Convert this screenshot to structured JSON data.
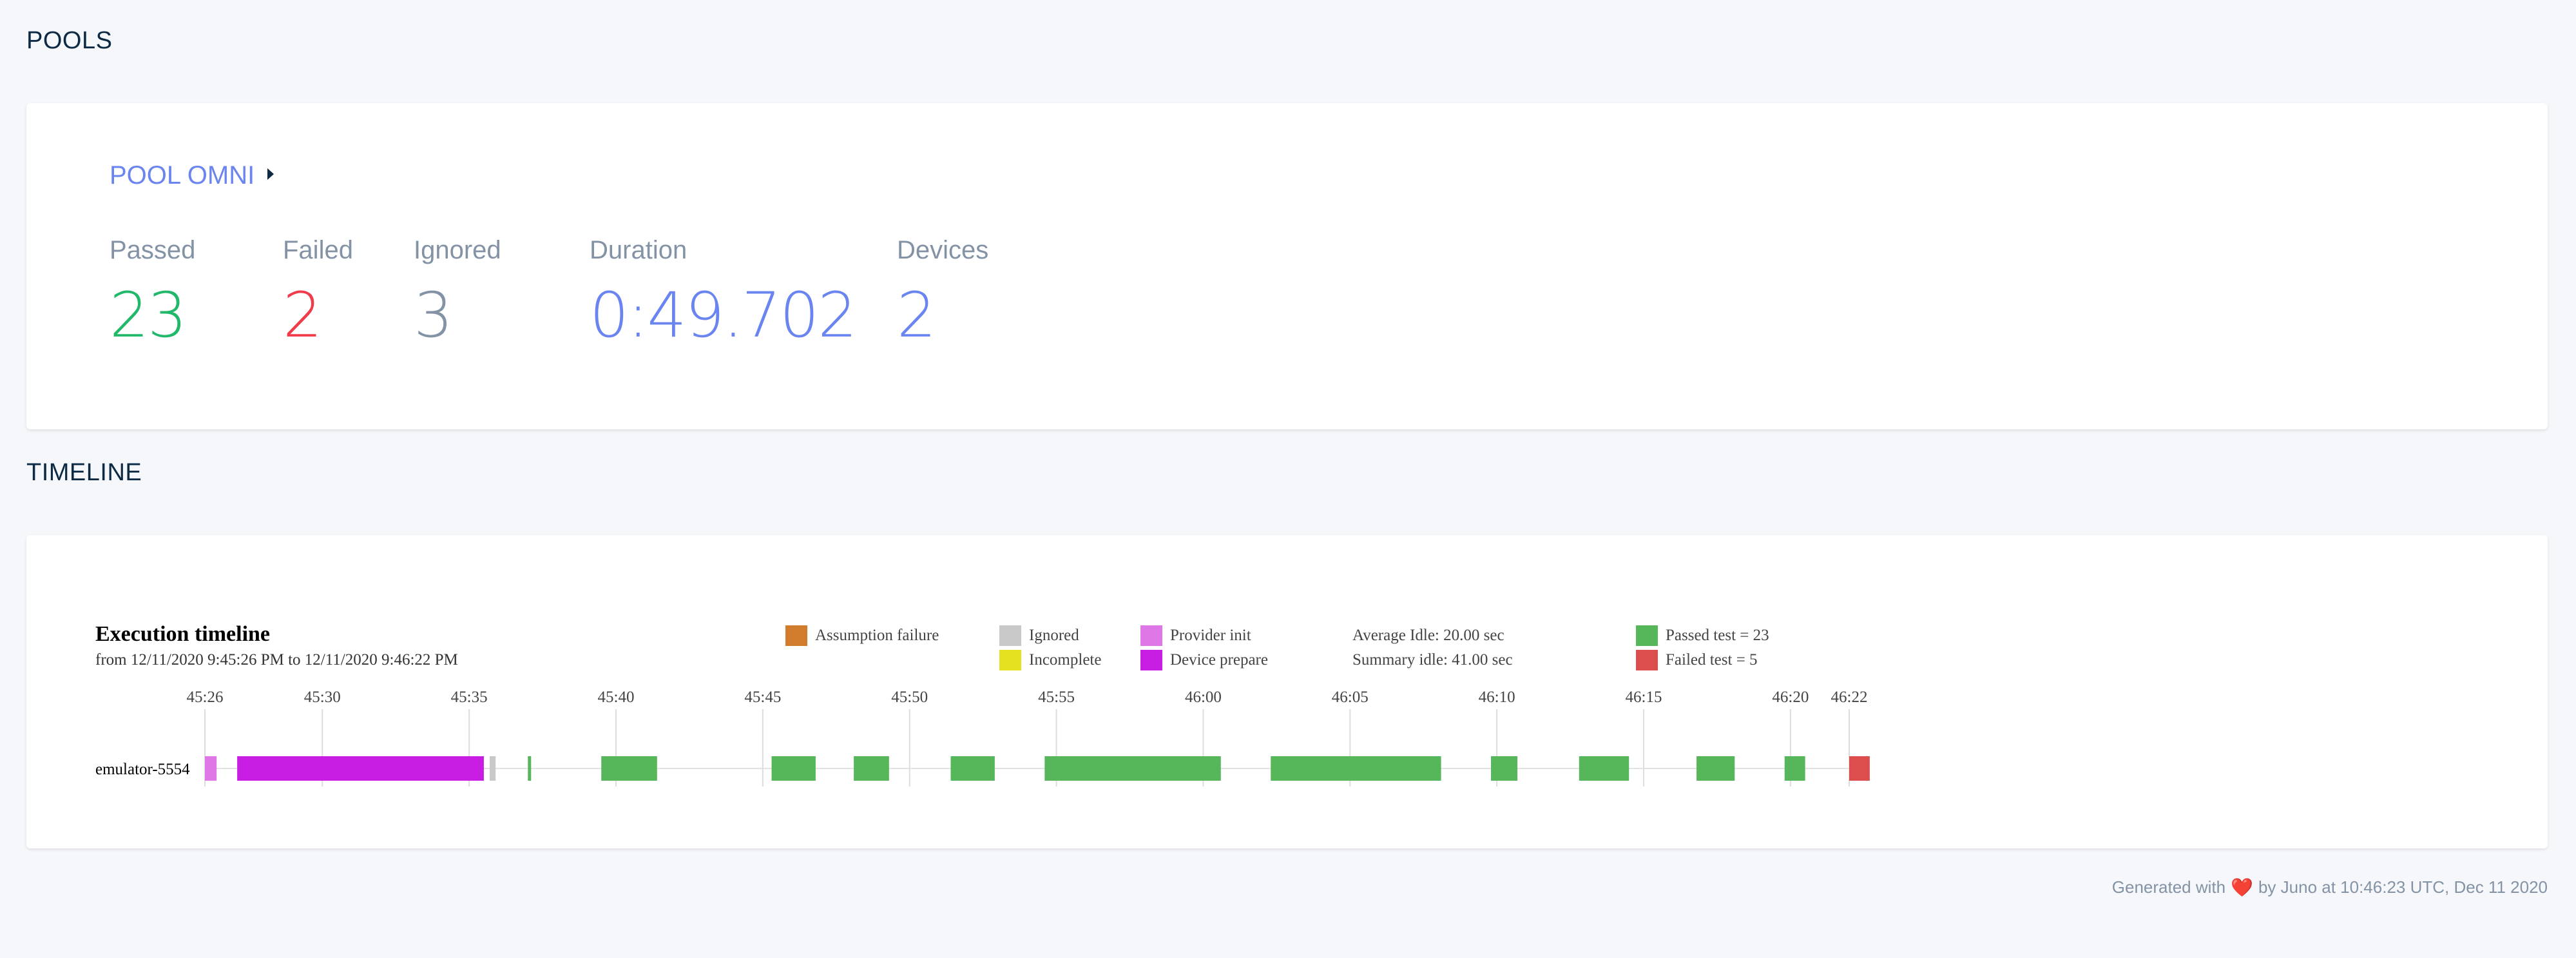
{
  "pools_section": {
    "title": "POOLS"
  },
  "pool": {
    "name": "POOL OMNI",
    "stats": [
      {
        "label": "Passed",
        "value": "23"
      },
      {
        "label": "Failed",
        "value": "2"
      },
      {
        "label": "Ignored",
        "value": "3"
      },
      {
        "label": "Duration",
        "value": "0:49.702"
      },
      {
        "label": "Devices",
        "value": "2"
      }
    ]
  },
  "timeline_section": {
    "title": "TIMELINE"
  },
  "timeline": {
    "title": "Execution timeline",
    "subtitle": "from 12/11/2020 9:45:26 PM to 12/11/2020 9:46:22 PM",
    "legend": [
      {
        "label": "Assumption failure",
        "color": "#d17b2c"
      },
      {
        "label": "Ignored",
        "color": "#c8c8c8"
      },
      {
        "label": "Incomplete",
        "color": "#e5e020"
      },
      {
        "label": "Provider init",
        "color": "#dd78e6"
      },
      {
        "label": "Device prepare",
        "color": "#c81ee4"
      },
      {
        "label": "Passed test = 23",
        "color": "#56b65a"
      },
      {
        "label": "Failed test = 5",
        "color": "#dc4d4d"
      }
    ],
    "idle": {
      "average": "Average Idle: 20.00 sec",
      "summary": "Summary idle: 41.00 sec"
    },
    "device": "emulator-5554"
  },
  "chart_data": {
    "type": "timeline",
    "x_unit": "time (mm:ss)",
    "x_ticks": [
      "45:26",
      "45:30",
      "45:35",
      "45:40",
      "45:45",
      "45:50",
      "45:55",
      "46:00",
      "46:05",
      "46:10",
      "46:15",
      "46:20",
      "46:22"
    ],
    "xlim": [
      "45:26",
      "46:22"
    ],
    "rows": [
      {
        "device": "emulator-5554",
        "segments": [
          {
            "status": "Provider init",
            "start": "45:26.0",
            "end": "45:26.4"
          },
          {
            "status": "Device prepare",
            "start": "45:27.1",
            "end": "45:35.5"
          },
          {
            "status": "Ignored",
            "start": "45:35.7",
            "end": "45:35.9"
          },
          {
            "status": "Passed",
            "start": "45:37.0",
            "end": "45:37.1"
          },
          {
            "status": "Passed",
            "start": "45:39.5",
            "end": "45:41.4"
          },
          {
            "status": "Passed",
            "start": "45:45.3",
            "end": "45:46.8"
          },
          {
            "status": "Passed",
            "start": "45:48.1",
            "end": "45:49.3"
          },
          {
            "status": "Passed",
            "start": "45:51.4",
            "end": "45:52.9"
          },
          {
            "status": "Passed",
            "start": "45:54.6",
            "end": "46:00.6"
          },
          {
            "status": "Passed",
            "start": "46:02.3",
            "end": "46:08.1"
          },
          {
            "status": "Passed",
            "start": "46:09.8",
            "end": "46:10.7"
          },
          {
            "status": "Passed",
            "start": "46:12.8",
            "end": "46:14.5"
          },
          {
            "status": "Passed",
            "start": "46:16.8",
            "end": "46:18.1"
          },
          {
            "status": "Passed",
            "start": "46:19.8",
            "end": "46:20.5"
          },
          {
            "status": "Failed",
            "start": "46:22.0",
            "end": "46:22.7"
          }
        ]
      }
    ]
  },
  "footer": {
    "prefix": "Generated with",
    "heart": "❤️",
    "suffix": "by Juno at 10:46:23 UTC, Dec 11 2020"
  }
}
